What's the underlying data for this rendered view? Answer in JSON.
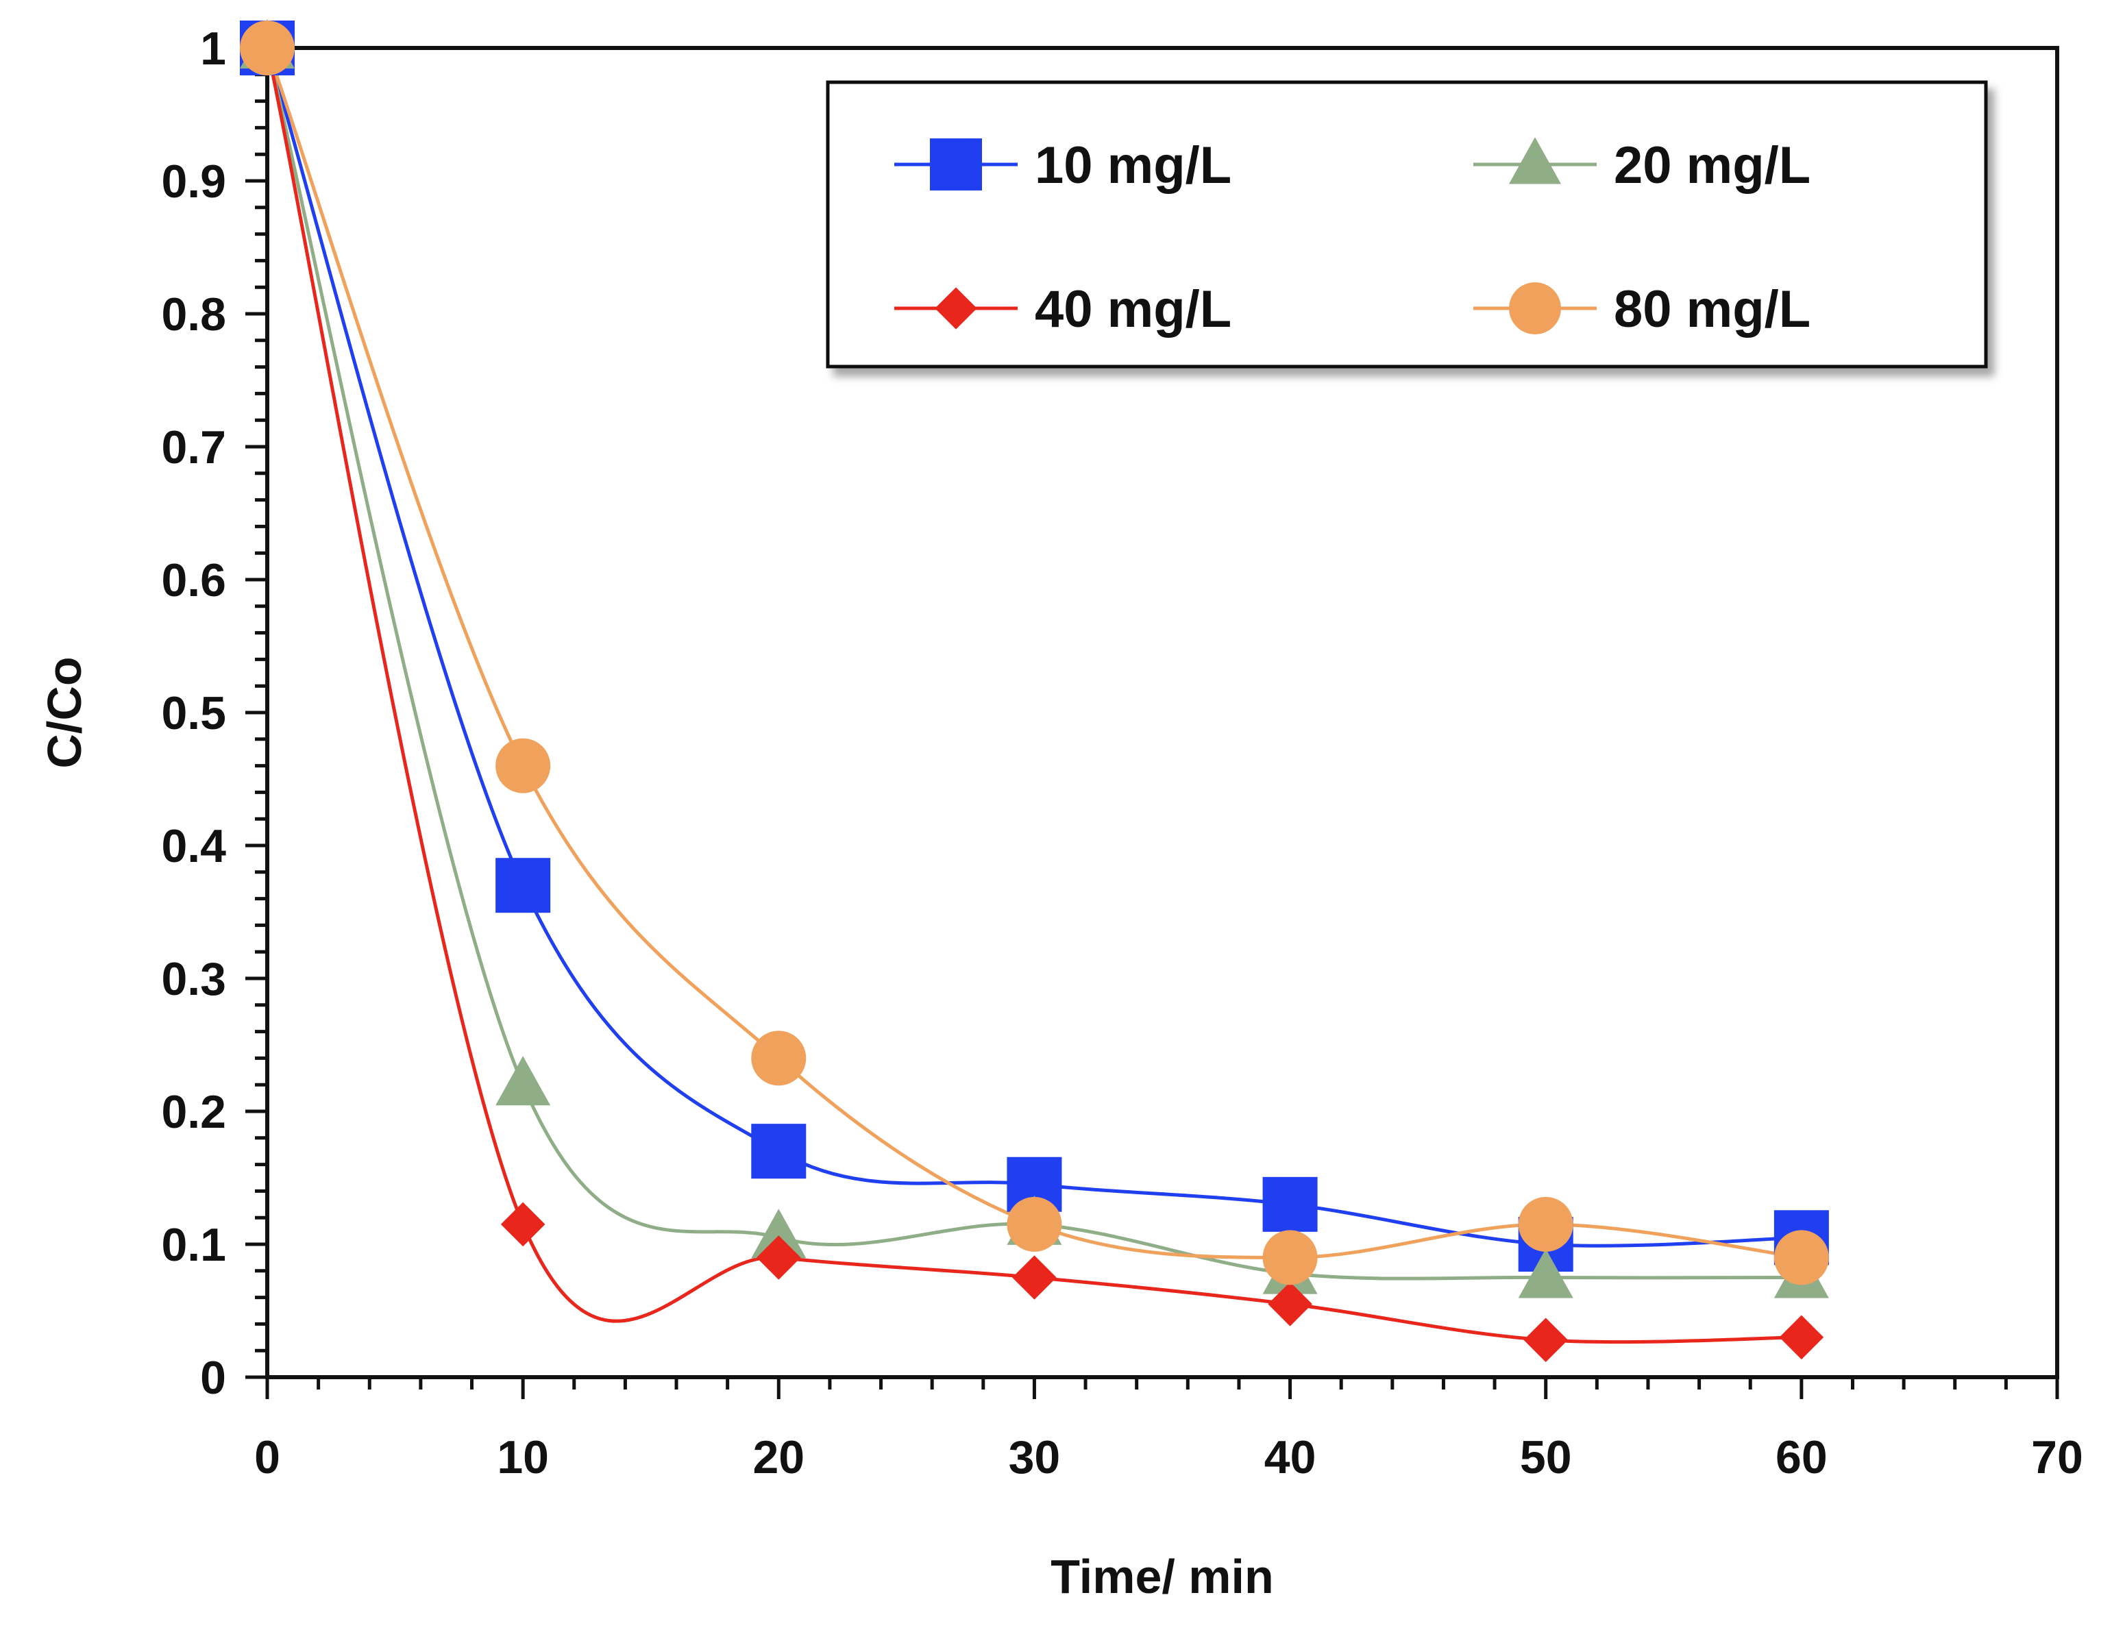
{
  "chart_data": {
    "type": "line",
    "title": "",
    "xlabel": "Time/ min",
    "ylabel": "C/Co",
    "xlim": [
      0,
      70
    ],
    "ylim": [
      0,
      1
    ],
    "x_ticks": [
      "0",
      "10",
      "20",
      "30",
      "40",
      "50",
      "60",
      "70"
    ],
    "y_ticks": [
      "0",
      "0.1",
      "0.2",
      "0.3",
      "0.4",
      "0.5",
      "0.6",
      "0.7",
      "0.8",
      "0.9",
      "1"
    ],
    "grid": false,
    "smooth": true,
    "legend_position": "top-right",
    "x": [
      0,
      10,
      20,
      30,
      40,
      50,
      60
    ],
    "series": [
      {
        "name": "10 mg/L",
        "color": "#1f3ff0",
        "marker": "square",
        "values": [
          1.0,
          0.37,
          0.17,
          0.145,
          0.13,
          0.1,
          0.105
        ]
      },
      {
        "name": "20 mg/L",
        "color": "#8fae88",
        "marker": "triangle",
        "values": [
          1.0,
          0.22,
          0.105,
          0.115,
          0.078,
          0.075,
          0.075
        ]
      },
      {
        "name": "40 mg/L",
        "color": "#e8261c",
        "marker": "diamond",
        "values": [
          1.0,
          0.115,
          0.09,
          0.075,
          0.055,
          0.028,
          0.03
        ]
      },
      {
        "name": "80 mg/L",
        "color": "#f0a25c",
        "marker": "circle",
        "values": [
          1.0,
          0.46,
          0.24,
          0.115,
          0.09,
          0.115,
          0.09
        ]
      }
    ]
  }
}
